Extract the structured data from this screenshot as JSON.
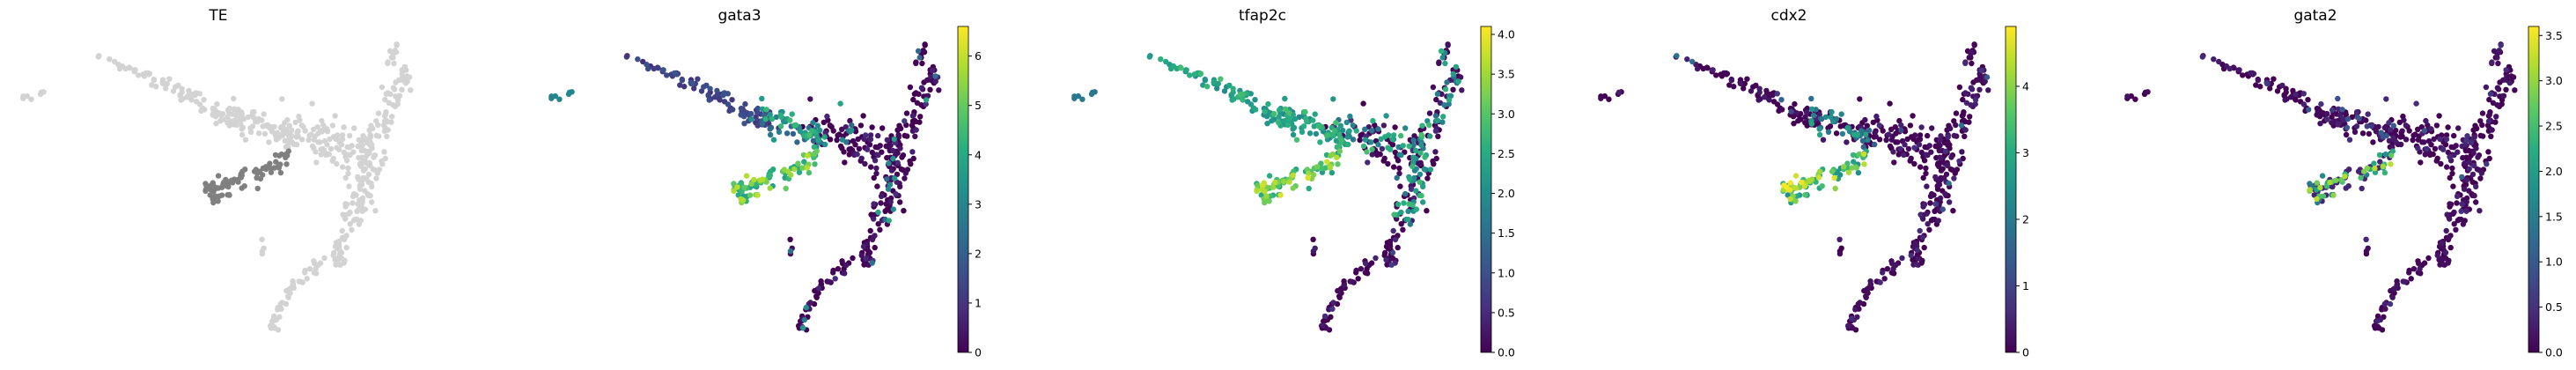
{
  "chart_data": [
    {
      "type": "scatter",
      "title": "TE",
      "coloring": "categorical",
      "colors": {
        "highlight": "#808080",
        "background": "#d3d3d3"
      },
      "legend": "none"
    },
    {
      "type": "scatter",
      "title": "gata3",
      "coloring": "continuous",
      "colormap": "viridis",
      "colorbar": {
        "range": [
          0,
          6.6
        ],
        "ticks": [
          "0",
          "1",
          "2",
          "3",
          "4",
          "5",
          "6"
        ]
      },
      "hotspot": "left-lower branch"
    },
    {
      "type": "scatter",
      "title": "tfap2c",
      "coloring": "continuous",
      "colormap": "viridis",
      "colorbar": {
        "range": [
          0,
          4.1
        ],
        "ticks": [
          "0.0",
          "0.5",
          "1.0",
          "1.5",
          "2.0",
          "2.5",
          "3.0",
          "3.5",
          "4.0"
        ]
      },
      "hotspot": "broad upper arm"
    },
    {
      "type": "scatter",
      "title": "cdx2",
      "coloring": "continuous",
      "colormap": "viridis",
      "colorbar": {
        "range": [
          0,
          4.9
        ],
        "ticks": [
          "0",
          "1",
          "2",
          "3",
          "4"
        ]
      },
      "hotspot": "left-lower branch"
    },
    {
      "type": "scatter",
      "title": "gata2",
      "coloring": "continuous",
      "colormap": "viridis",
      "colorbar": {
        "range": [
          0,
          3.6
        ],
        "ticks": [
          "0.0",
          "0.5",
          "1.0",
          "1.5",
          "2.0",
          "2.5",
          "3.0",
          "3.5"
        ]
      },
      "hotspot": "left-lower branch"
    }
  ]
}
